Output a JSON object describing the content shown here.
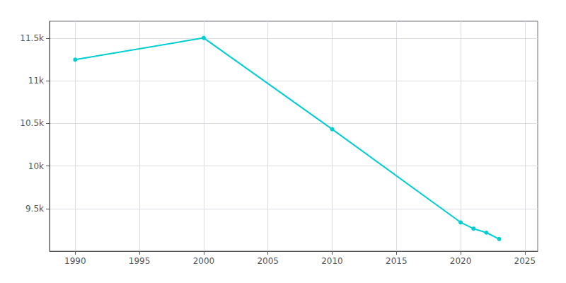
{
  "chart_data": {
    "type": "line",
    "x": [
      1990,
      2000,
      2010,
      2020,
      2021,
      2022,
      2023
    ],
    "values": [
      11249,
      11504,
      10432,
      9338,
      9264,
      9218,
      9143
    ],
    "color": "#00CED1",
    "marker": "circle",
    "xlim": [
      1988,
      2026
    ],
    "xticks": [
      1990,
      1995,
      2000,
      2005,
      2010,
      2015,
      2020,
      2025
    ],
    "ylim": [
      9000,
      11700
    ],
    "yticks": [
      {
        "value": 9500,
        "label": "9.5k"
      },
      {
        "value": 10000,
        "label": "10k"
      },
      {
        "value": 10500,
        "label": "10.5k"
      },
      {
        "value": 11000,
        "label": "11k"
      },
      {
        "value": 11500,
        "label": "11.5k"
      }
    ],
    "grid": true
  }
}
